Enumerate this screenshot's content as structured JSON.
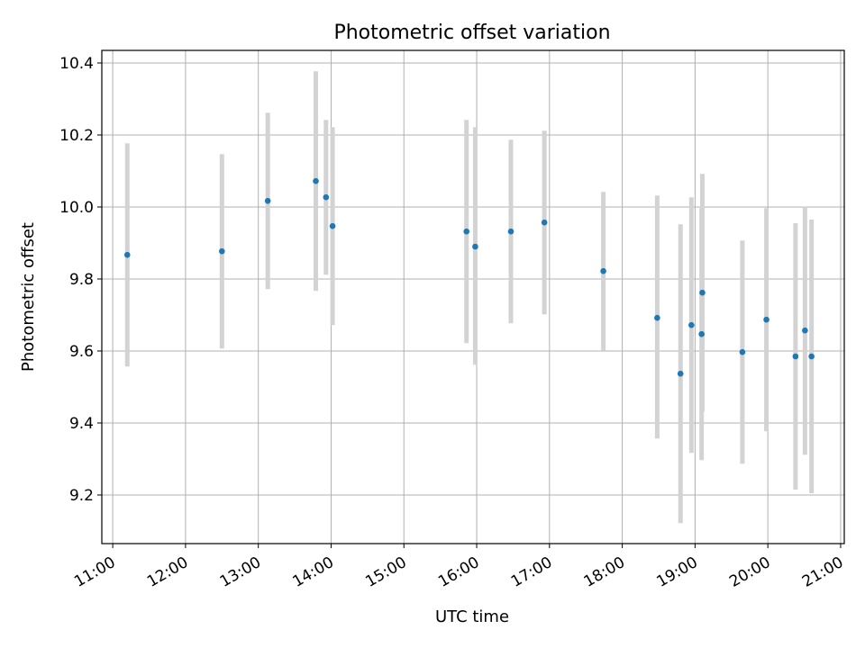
{
  "chart_data": {
    "type": "scatter",
    "title": "Photometric offset variation",
    "xlabel": "UTC time",
    "ylabel": "Photometric offset",
    "x_unit": "hours (UTC)",
    "xlim": [
      10.85,
      21.05
    ],
    "ylim": [
      9.065,
      10.435
    ],
    "xticks": [
      {
        "value": 11,
        "label": "11:00"
      },
      {
        "value": 12,
        "label": "12:00"
      },
      {
        "value": 13,
        "label": "13:00"
      },
      {
        "value": 14,
        "label": "14:00"
      },
      {
        "value": 15,
        "label": "15:00"
      },
      {
        "value": 16,
        "label": "16:00"
      },
      {
        "value": 17,
        "label": "17:00"
      },
      {
        "value": 18,
        "label": "18:00"
      },
      {
        "value": 19,
        "label": "19:00"
      },
      {
        "value": 20,
        "label": "20:00"
      },
      {
        "value": 21,
        "label": "21:00"
      }
    ],
    "yticks": [
      {
        "value": 9.2,
        "label": "9.2"
      },
      {
        "value": 9.4,
        "label": "9.4"
      },
      {
        "value": 9.6,
        "label": "9.6"
      },
      {
        "value": 9.8,
        "label": "9.8"
      },
      {
        "value": 10.0,
        "label": "10.0"
      },
      {
        "value": 10.2,
        "label": "10.2"
      },
      {
        "value": 10.4,
        "label": "10.4"
      }
    ],
    "grid": true,
    "point_color": "#1f77b4",
    "errorbar_color": "#d3d3d3",
    "points": [
      {
        "x": 11.2,
        "y": 9.867,
        "low": 9.557,
        "high": 10.177
      },
      {
        "x": 12.5,
        "y": 9.877,
        "low": 9.607,
        "high": 10.147
      },
      {
        "x": 13.13,
        "y": 10.017,
        "low": 9.772,
        "high": 10.262
      },
      {
        "x": 13.79,
        "y": 10.072,
        "low": 9.767,
        "high": 10.377
      },
      {
        "x": 13.93,
        "y": 10.027,
        "low": 9.812,
        "high": 10.242
      },
      {
        "x": 14.02,
        "y": 9.947,
        "low": 9.672,
        "high": 10.222
      },
      {
        "x": 15.86,
        "y": 9.932,
        "low": 9.622,
        "high": 10.242
      },
      {
        "x": 15.98,
        "y": 9.89,
        "low": 9.562,
        "high": 10.222
      },
      {
        "x": 16.47,
        "y": 9.932,
        "low": 9.677,
        "high": 10.187
      },
      {
        "x": 16.93,
        "y": 9.957,
        "low": 9.702,
        "high": 10.212
      },
      {
        "x": 17.74,
        "y": 9.822,
        "low": 9.602,
        "high": 10.042
      },
      {
        "x": 18.48,
        "y": 9.692,
        "low": 9.357,
        "high": 10.032
      },
      {
        "x": 18.8,
        "y": 9.537,
        "low": 9.122,
        "high": 9.952
      },
      {
        "x": 18.95,
        "y": 9.672,
        "low": 9.317,
        "high": 10.027
      },
      {
        "x": 19.09,
        "y": 9.647,
        "low": 9.297,
        "high": 9.997
      },
      {
        "x": 19.1,
        "y": 9.762,
        "low": 9.432,
        "high": 10.092
      },
      {
        "x": 19.65,
        "y": 9.597,
        "low": 9.287,
        "high": 9.907
      },
      {
        "x": 19.98,
        "y": 9.687,
        "low": 9.377,
        "high": 9.997
      },
      {
        "x": 20.38,
        "y": 9.585,
        "low": 9.215,
        "high": 9.955
      },
      {
        "x": 20.51,
        "y": 9.657,
        "low": 9.312,
        "high": 10.002
      },
      {
        "x": 20.6,
        "y": 9.585,
        "low": 9.205,
        "high": 9.965
      }
    ]
  }
}
